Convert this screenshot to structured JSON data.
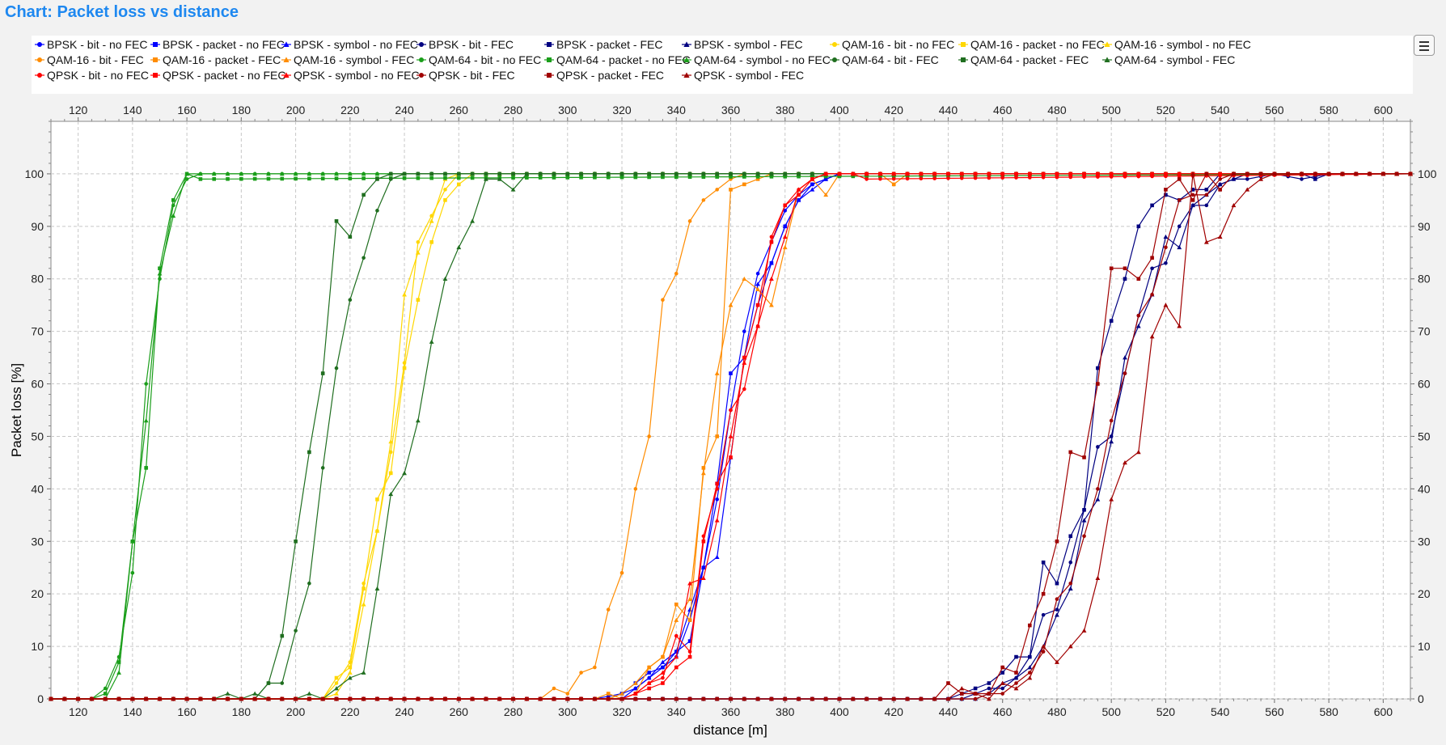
{
  "title": "Chart: Packet loss vs distance",
  "legend_button": "legend-toggle",
  "chart_data": {
    "type": "line",
    "xlabel": "distance [m]",
    "ylabel": "Packet loss [%]",
    "xlim": [
      110,
      610
    ],
    "ylim": [
      0,
      110
    ],
    "x_ticks": [
      120,
      140,
      160,
      180,
      200,
      220,
      240,
      260,
      280,
      300,
      320,
      340,
      360,
      380,
      400,
      420,
      440,
      460,
      480,
      500,
      520,
      540,
      560,
      580,
      600
    ],
    "y_ticks": [
      0,
      10,
      20,
      30,
      40,
      50,
      60,
      70,
      80,
      90,
      100
    ],
    "grid": true,
    "legend_position": "top",
    "series": [
      {
        "name": "BPSK - bit - no FEC",
        "color": "#0000ff",
        "marker": "circle",
        "x": [
          110,
          310,
          320,
          325,
          330,
          335,
          340,
          345,
          350,
          355,
          360,
          365,
          370,
          375,
          380,
          385,
          390,
          395,
          400,
          405,
          410
        ],
        "y": [
          0,
          0,
          1,
          2,
          4,
          6,
          8,
          15,
          25,
          38,
          55,
          70,
          81,
          87,
          93,
          96,
          98,
          99,
          100,
          100,
          100
        ]
      },
      {
        "name": "BPSK - packet - no FEC",
        "color": "#0000ff",
        "marker": "square",
        "x": [
          110,
          315,
          320,
          325,
          330,
          335,
          340,
          345,
          350,
          355,
          360,
          365,
          370,
          375,
          380,
          385,
          390,
          395,
          400,
          405
        ],
        "y": [
          0,
          0,
          1,
          3,
          5,
          6,
          9,
          11,
          25,
          41,
          62,
          65,
          75,
          83,
          90,
          95,
          98,
          99,
          100,
          100
        ]
      },
      {
        "name": "BPSK - symbol - no FEC",
        "color": "#0000ff",
        "marker": "triangle",
        "x": [
          110,
          320,
          325,
          330,
          335,
          340,
          345,
          350,
          355,
          360,
          365,
          370,
          375,
          380,
          385,
          390,
          395,
          400,
          405
        ],
        "y": [
          0,
          0,
          2,
          4,
          7,
          9,
          17,
          25,
          27,
          46,
          65,
          79,
          83,
          90,
          95,
          97,
          99,
          100,
          100
        ]
      },
      {
        "name": "BPSK - bit - FEC",
        "color": "#000080",
        "marker": "circle",
        "x": [
          110,
          445,
          450,
          455,
          460,
          465,
          470,
          475,
          480,
          485,
          490,
          495,
          500,
          505,
          510,
          515,
          520,
          525,
          530,
          535,
          540,
          545,
          550,
          560,
          570,
          580,
          610
        ],
        "y": [
          0,
          0,
          1,
          2,
          2,
          4,
          8,
          16,
          17,
          26,
          36,
          48,
          50,
          62,
          73,
          82,
          83,
          90,
          94,
          94,
          98,
          99,
          99,
          100,
          99,
          100,
          100
        ]
      },
      {
        "name": "BPSK - packet - FEC",
        "color": "#000080",
        "marker": "square",
        "x": [
          110,
          440,
          445,
          450,
          455,
          460,
          465,
          470,
          475,
          480,
          485,
          490,
          495,
          500,
          505,
          510,
          515,
          520,
          525,
          530,
          535,
          540,
          545,
          550,
          555,
          560,
          565,
          570,
          575,
          580,
          610
        ],
        "y": [
          0,
          0,
          1,
          2,
          3,
          5,
          8,
          8,
          26,
          22,
          31,
          36,
          63,
          72,
          80,
          90,
          94,
          96,
          95,
          97,
          97,
          100,
          100,
          100,
          100,
          100,
          100,
          100,
          99,
          100,
          100
        ]
      },
      {
        "name": "BPSK - symbol - FEC",
        "color": "#000080",
        "marker": "triangle",
        "x": [
          110,
          450,
          455,
          460,
          465,
          470,
          475,
          480,
          485,
          490,
          495,
          500,
          505,
          510,
          515,
          520,
          525,
          530,
          535,
          540,
          545,
          550,
          560,
          610
        ],
        "y": [
          0,
          0,
          1,
          3,
          4,
          6,
          10,
          16,
          21,
          34,
          38,
          49,
          65,
          71,
          77,
          88,
          86,
          94,
          96,
          98,
          99,
          100,
          100,
          100
        ]
      },
      {
        "name": "QAM-16 - bit - no FEC",
        "color": "#ffd700",
        "marker": "circle",
        "x": [
          110,
          210,
          215,
          220,
          225,
          230,
          235,
          240,
          245,
          250,
          255,
          260,
          265,
          270,
          610
        ],
        "y": [
          0,
          0,
          3,
          7,
          22,
          32,
          47,
          64,
          87,
          92,
          97,
          100,
          100,
          100,
          100
        ]
      },
      {
        "name": "QAM-16 - packet - no FEC",
        "color": "#ffd700",
        "marker": "square",
        "x": [
          110,
          210,
          215,
          220,
          225,
          230,
          235,
          240,
          245,
          250,
          255,
          260,
          265,
          270,
          610
        ],
        "y": [
          0,
          0,
          4,
          6,
          21,
          38,
          43,
          63,
          76,
          87,
          95,
          98,
          100,
          100,
          100
        ]
      },
      {
        "name": "QAM-16 - symbol - no FEC",
        "color": "#ffd700",
        "marker": "triangle",
        "x": [
          110,
          210,
          215,
          220,
          225,
          230,
          235,
          240,
          245,
          250,
          255,
          260,
          265,
          270,
          610
        ],
        "y": [
          0,
          0,
          1,
          5,
          18,
          32,
          49,
          77,
          85,
          91,
          99,
          100,
          100,
          100,
          100
        ]
      },
      {
        "name": "QAM-16 - bit - FEC",
        "color": "#ff8c00",
        "marker": "circle",
        "x": [
          110,
          285,
          290,
          295,
          300,
          305,
          310,
          315,
          320,
          325,
          330,
          335,
          340,
          345,
          350,
          355,
          360,
          365,
          370,
          375,
          380,
          610
        ],
        "y": [
          0,
          0,
          0,
          2,
          1,
          5,
          6,
          17,
          24,
          40,
          50,
          76,
          81,
          91,
          95,
          97,
          99,
          100,
          100,
          100,
          100,
          100
        ]
      },
      {
        "name": "QAM-16 - packet - FEC",
        "color": "#ff8c00",
        "marker": "square",
        "x": [
          110,
          305,
          310,
          315,
          320,
          325,
          330,
          335,
          340,
          345,
          350,
          355,
          360,
          365,
          370,
          375,
          380,
          385,
          390,
          395,
          400,
          405,
          410,
          415,
          420,
          425,
          430,
          610
        ],
        "y": [
          0,
          0,
          0,
          1,
          0,
          1,
          6,
          8,
          18,
          15,
          44,
          50,
          97,
          98,
          99,
          100,
          100,
          100,
          100,
          100,
          100,
          100,
          100,
          100,
          98,
          100,
          100,
          100
        ]
      },
      {
        "name": "QAM-16 - symbol - FEC",
        "color": "#ff8c00",
        "marker": "triangle",
        "x": [
          110,
          310,
          315,
          320,
          325,
          330,
          335,
          340,
          345,
          350,
          355,
          360,
          365,
          370,
          375,
          380,
          385,
          390,
          395,
          400,
          405,
          410,
          610
        ],
        "y": [
          0,
          0,
          0,
          1,
          3,
          6,
          8,
          15,
          19,
          43,
          62,
          75,
          80,
          78,
          75,
          86,
          97,
          99,
          96,
          100,
          100,
          100,
          100
        ]
      },
      {
        "name": "QAM-64 - bit - no FEC",
        "color": "#1a9e1a",
        "marker": "circle",
        "x": [
          110,
          125,
          130,
          135,
          140,
          145,
          150,
          155,
          160,
          165,
          610
        ],
        "y": [
          0,
          0,
          2,
          8,
          24,
          60,
          80,
          94,
          99,
          100,
          100
        ]
      },
      {
        "name": "QAM-64 - packet - no FEC",
        "color": "#1a9e1a",
        "marker": "square",
        "x": [
          110,
          125,
          130,
          135,
          140,
          145,
          150,
          155,
          160,
          165,
          610
        ],
        "y": [
          0,
          0,
          1,
          7,
          30,
          44,
          82,
          95,
          100,
          99,
          100
        ]
      },
      {
        "name": "QAM-64 - symbol - no FEC",
        "color": "#1a9e1a",
        "marker": "triangle",
        "x": [
          110,
          125,
          130,
          135,
          140,
          145,
          150,
          155,
          160,
          165,
          610
        ],
        "y": [
          0,
          0,
          0,
          5,
          30,
          53,
          81,
          92,
          100,
          100,
          100
        ]
      },
      {
        "name": "QAM-64 - bit - FEC",
        "color": "#1f6e1f",
        "marker": "circle",
        "x": [
          110,
          180,
          185,
          190,
          195,
          200,
          205,
          210,
          215,
          220,
          225,
          230,
          235,
          240,
          245,
          250,
          255,
          260,
          265,
          270,
          610
        ],
        "y": [
          0,
          0,
          0,
          3,
          3,
          13,
          22,
          44,
          63,
          76,
          84,
          93,
          99,
          100,
          100,
          100,
          100,
          100,
          100,
          100,
          100
        ]
      },
      {
        "name": "QAM-64 - packet - FEC",
        "color": "#1f6e1f",
        "marker": "square",
        "x": [
          110,
          180,
          185,
          190,
          195,
          200,
          205,
          210,
          215,
          220,
          225,
          230,
          235,
          240,
          245,
          250,
          255,
          260,
          610
        ],
        "y": [
          0,
          0,
          0,
          3,
          12,
          30,
          47,
          62,
          91,
          88,
          96,
          99,
          100,
          100,
          100,
          100,
          100,
          100,
          100
        ]
      },
      {
        "name": "QAM-64 - symbol - FEC",
        "color": "#1f6e1f",
        "marker": "triangle",
        "x": [
          110,
          170,
          175,
          180,
          185,
          190,
          195,
          200,
          205,
          210,
          215,
          220,
          225,
          230,
          235,
          240,
          245,
          250,
          255,
          260,
          265,
          270,
          275,
          280,
          285,
          290,
          610
        ],
        "y": [
          0,
          0,
          1,
          0,
          1,
          0,
          0,
          0,
          1,
          0,
          2,
          4,
          5,
          21,
          39,
          43,
          53,
          68,
          80,
          86,
          91,
          99,
          99,
          97,
          100,
          100,
          100
        ]
      },
      {
        "name": "QPSK - bit - no FEC",
        "color": "#ff0000",
        "marker": "circle",
        "x": [
          110,
          315,
          320,
          325,
          330,
          335,
          340,
          345,
          350,
          355,
          360,
          365,
          370,
          375,
          380,
          385,
          390,
          395,
          400,
          405,
          410,
          610
        ],
        "y": [
          0,
          0,
          0,
          1,
          3,
          4,
          12,
          9,
          31,
          40,
          55,
          59,
          71,
          88,
          94,
          97,
          99,
          100,
          100,
          100,
          99,
          100
        ]
      },
      {
        "name": "QPSK - packet - no FEC",
        "color": "#ff0000",
        "marker": "square",
        "x": [
          110,
          315,
          320,
          325,
          330,
          335,
          340,
          345,
          350,
          355,
          360,
          365,
          370,
          375,
          380,
          385,
          390,
          395,
          400,
          405,
          610
        ],
        "y": [
          0,
          0,
          0,
          1,
          2,
          3,
          6,
          8,
          30,
          41,
          46,
          65,
          75,
          87,
          94,
          96,
          99,
          100,
          100,
          100,
          100
        ]
      },
      {
        "name": "QPSK - symbol - no FEC",
        "color": "#ff0000",
        "marker": "triangle",
        "x": [
          110,
          315,
          320,
          325,
          330,
          335,
          340,
          345,
          350,
          355,
          360,
          365,
          370,
          375,
          380,
          385,
          390,
          395,
          400,
          405,
          610
        ],
        "y": [
          0,
          0,
          0,
          1,
          3,
          5,
          8,
          22,
          23,
          34,
          50,
          64,
          71,
          80,
          88,
          97,
          99,
          100,
          100,
          100,
          100
        ]
      },
      {
        "name": "QPSK - bit - FEC",
        "color": "#a00000",
        "marker": "circle",
        "x": [
          110,
          445,
          450,
          455,
          460,
          465,
          470,
          475,
          480,
          485,
          490,
          495,
          500,
          505,
          510,
          515,
          520,
          525,
          530,
          535,
          540,
          545,
          550,
          555,
          560,
          610
        ],
        "y": [
          0,
          0,
          0,
          1,
          1,
          3,
          5,
          9,
          19,
          22,
          31,
          40,
          53,
          62,
          73,
          77,
          86,
          95,
          96,
          96,
          99,
          100,
          100,
          100,
          100,
          100
        ]
      },
      {
        "name": "QPSK - packet - FEC",
        "color": "#a00000",
        "marker": "square",
        "x": [
          110,
          435,
          440,
          445,
          450,
          455,
          460,
          465,
          470,
          475,
          480,
          485,
          490,
          495,
          500,
          505,
          510,
          515,
          520,
          525,
          530,
          535,
          540,
          545,
          550,
          610
        ],
        "y": [
          0,
          0,
          3,
          1,
          1,
          1,
          6,
          5,
          14,
          20,
          30,
          47,
          46,
          60,
          82,
          82,
          80,
          84,
          97,
          99,
          95,
          100,
          97,
          100,
          100,
          100
        ]
      },
      {
        "name": "QPSK - symbol - FEC",
        "color": "#a00000",
        "marker": "triangle",
        "x": [
          110,
          440,
          445,
          450,
          455,
          460,
          465,
          470,
          475,
          480,
          485,
          490,
          495,
          500,
          505,
          510,
          515,
          520,
          525,
          530,
          535,
          540,
          545,
          550,
          555,
          560,
          570,
          610
        ],
        "y": [
          0,
          0,
          2,
          1,
          0,
          3,
          2,
          4,
          10,
          7,
          10,
          13,
          23,
          38,
          45,
          47,
          69,
          75,
          71,
          100,
          87,
          88,
          94,
          97,
          99,
          100,
          100,
          100
        ]
      }
    ]
  }
}
